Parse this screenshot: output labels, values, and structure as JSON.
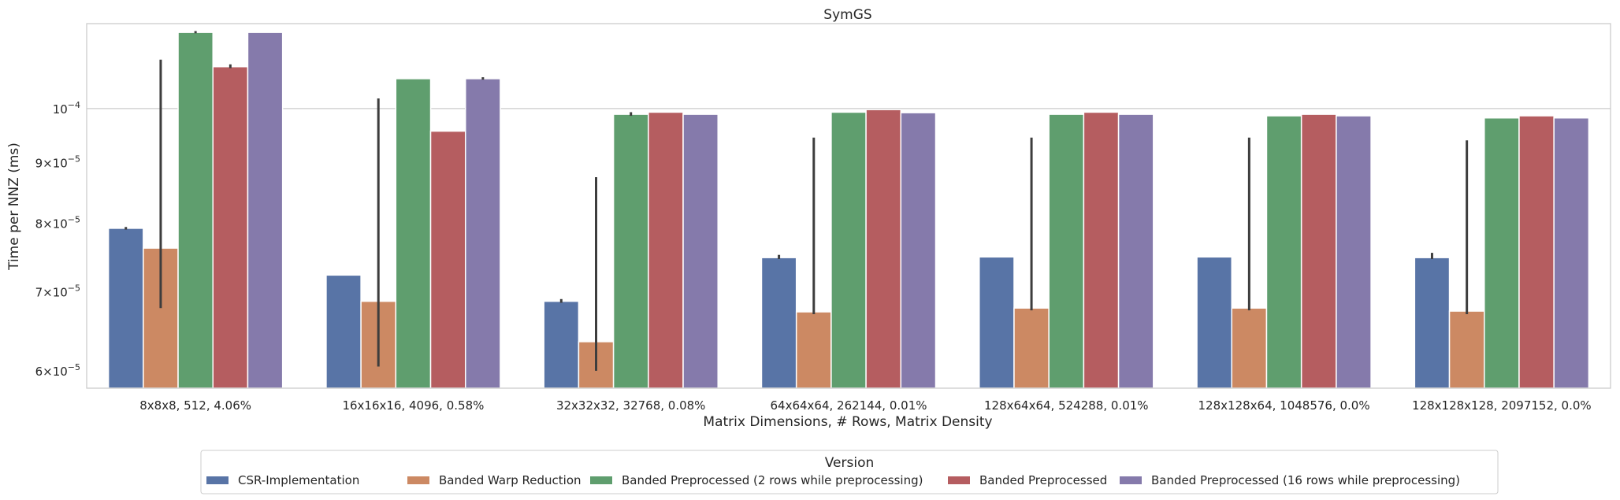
{
  "chart_data": {
    "type": "bar",
    "title": "SymGS",
    "xlabel": "Matrix Dimensions, # Rows, Matrix Density",
    "ylabel": "Time per NNZ (ms)",
    "yscale": "log",
    "ylim": [
      5.8e-05,
      0.000118
    ],
    "grid": "horizontal",
    "legend_placement": "bottom-center",
    "legend_title": "Version",
    "categories": [
      "8x8x8, 512, 4.06%",
      "16x16x16, 4096, 0.58%",
      "32x32x32, 32768, 0.08%",
      "64x64x64, 262144, 0.01%",
      "128x64x64, 524288, 0.01%",
      "128x128x64, 1048576, 0.0%",
      "128x128x128, 2097152, 0.0%"
    ],
    "yticks": [
      {
        "value": 6e-05,
        "mantissa": "6",
        "exp": "−5"
      },
      {
        "value": 7e-05,
        "mantissa": "7",
        "exp": "−5"
      },
      {
        "value": 8e-05,
        "mantissa": "8",
        "exp": "−5"
      },
      {
        "value": 9e-05,
        "mantissa": "9",
        "exp": "−5"
      },
      {
        "value": 0.0001,
        "mantissa": "",
        "exp": "−4"
      }
    ],
    "series": [
      {
        "name": "CSR-Implementation",
        "color": "#5874a6",
        "values": [
          7.92e-05,
          7.23e-05,
          6.87e-05,
          7.48e-05,
          7.49e-05,
          7.49e-05,
          7.48e-05
        ],
        "err": [
          [
            7.9e-05,
            7.94e-05
          ],
          null,
          [
            6.85e-05,
            6.9e-05
          ],
          [
            7.46e-05,
            7.52e-05
          ],
          null,
          null,
          [
            7.46e-05,
            7.55e-05
          ]
        ]
      },
      {
        "name": "Banded Warp Reduction",
        "color": "#cc8963",
        "values": [
          7.62e-05,
          6.87e-05,
          6.35e-05,
          6.73e-05,
          6.78e-05,
          6.78e-05,
          6.74e-05
        ],
        "err": [
          [
            6.78e-05,
            0.00011
          ],
          [
            6.05e-05,
            0.000102
          ],
          [
            6e-05,
            8.75e-05
          ],
          [
            6.7e-05,
            9.45e-05
          ],
          [
            6.75e-05,
            9.45e-05
          ],
          [
            6.75e-05,
            9.45e-05
          ],
          [
            6.7e-05,
            9.4e-05
          ]
        ]
      },
      {
        "name": "Banded Preprocessed (2 rows while preprocessing)",
        "color": "#5f9e6e",
        "values": [
          0.000116,
          0.000106,
          9.89e-05,
          9.93e-05,
          9.89e-05,
          9.86e-05,
          9.82e-05
        ],
        "err": [
          [
            0.0001158,
            0.0001163
          ],
          null,
          [
            9.86e-05,
            9.93e-05
          ],
          null,
          null,
          null,
          null
        ]
      },
      {
        "name": "Banded Preprocessed",
        "color": "#b55d60",
        "values": [
          0.0001085,
          9.57e-05,
          9.93e-05,
          9.98e-05,
          9.93e-05,
          9.89e-05,
          9.86e-05
        ],
        "err": [
          [
            0.0001082,
            0.000109
          ],
          null,
          null,
          null,
          null,
          null,
          null
        ]
      },
      {
        "name": "Banded Preprocessed (16 rows while preprocessing)",
        "color": "#857aab",
        "values": [
          0.000116,
          0.000106,
          9.89e-05,
          9.92e-05,
          9.89e-05,
          9.86e-05,
          9.82e-05
        ],
        "err": [
          null,
          [
            0.0001058,
            0.0001063
          ],
          null,
          null,
          null,
          null,
          null
        ]
      }
    ]
  }
}
